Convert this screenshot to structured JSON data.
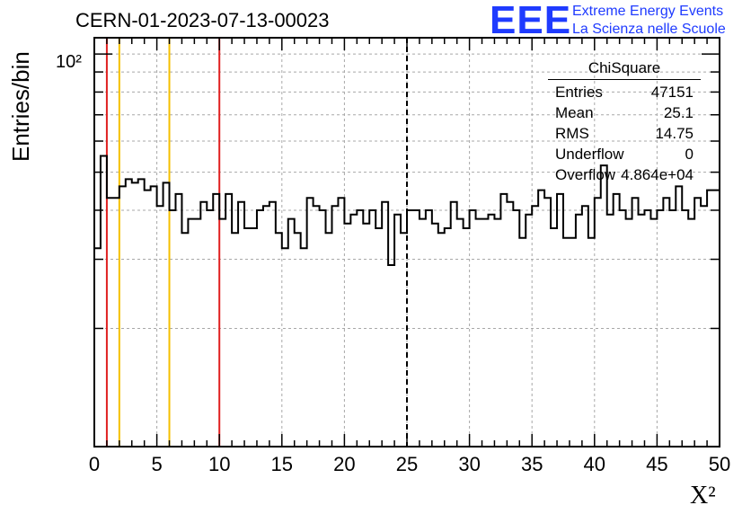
{
  "header": {
    "title": "CERN-01-2023-07-13-00023",
    "logo_text": "EEE",
    "logo_line1": "Extreme Energy Events",
    "logo_line2": "La Scienza nelle Scuole"
  },
  "stats": {
    "title": "ChiSquare",
    "rows": [
      {
        "label": "Entries",
        "value": "47151"
      },
      {
        "label": "Mean",
        "value": "25.1"
      },
      {
        "label": "RMS",
        "value": "14.75"
      },
      {
        "label": "Underflow",
        "value": "0"
      },
      {
        "label": "Overflow",
        "value": "4.864e+04"
      }
    ]
  },
  "chart_data": {
    "type": "step-histogram",
    "title": "CERN-01-2023-07-13-00023",
    "xlabel": "X²",
    "ylabel": "Entries/bin",
    "xlim": [
      0,
      50
    ],
    "ylim": [
      10,
      110
    ],
    "yscale": "log",
    "xticks": [
      "0",
      "5",
      "10",
      "15",
      "20",
      "25",
      "30",
      "35",
      "40",
      "45",
      "50"
    ],
    "ytick_label": "10²",
    "grid": true,
    "bin_width": 0.5,
    "values": [
      32,
      55,
      43,
      43,
      46,
      48,
      47,
      48,
      45,
      46,
      41,
      47,
      40,
      44,
      35,
      38,
      38,
      42,
      40,
      44,
      38,
      44,
      35,
      42,
      36,
      36,
      40,
      41,
      42,
      35,
      32,
      38,
      35,
      32,
      43,
      41,
      40,
      35,
      41,
      43,
      37,
      39,
      40,
      37,
      40,
      36,
      42,
      29,
      39,
      35,
      40,
      40,
      38,
      40,
      37,
      35,
      36,
      42,
      38,
      36,
      40,
      38,
      38,
      39,
      38,
      44,
      42,
      40,
      34,
      39,
      41,
      45,
      43,
      36,
      44,
      34,
      34,
      39,
      41,
      34,
      43,
      52,
      39,
      44,
      40,
      38,
      43,
      39,
      40,
      38,
      40,
      43,
      40,
      46,
      40,
      38,
      43,
      41,
      45,
      45
    ],
    "reference_lines": [
      {
        "x": 1,
        "color": "#e02020"
      },
      {
        "x": 2,
        "color": "#f5c000"
      },
      {
        "x": 6,
        "color": "#f5c000"
      },
      {
        "x": 10,
        "color": "#e02020"
      },
      {
        "x": 25,
        "color": "#000000",
        "dashed": true
      }
    ]
  }
}
